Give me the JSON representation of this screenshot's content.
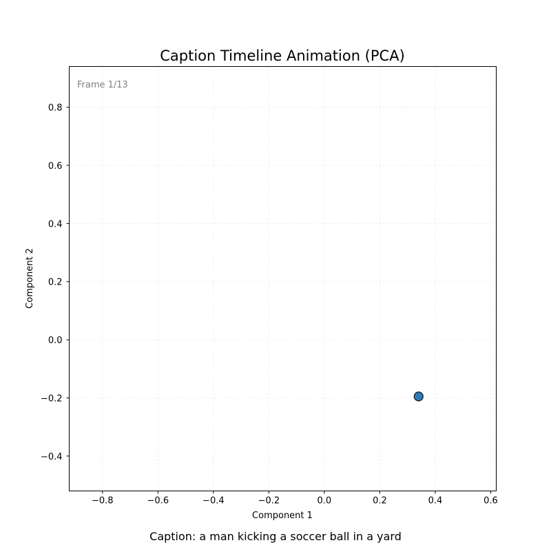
{
  "chart_data": {
    "type": "scatter",
    "title": "Caption Timeline Animation (PCA)",
    "xlabel": "Component 1",
    "ylabel": "Component 2",
    "xlim": [
      -0.92,
      0.62
    ],
    "ylim": [
      -0.52,
      0.94
    ],
    "x_ticks": [
      -0.8,
      -0.6,
      -0.4,
      -0.2,
      0.0,
      0.2,
      0.4,
      0.6
    ],
    "y_ticks": [
      -0.4,
      -0.2,
      0.0,
      0.2,
      0.4,
      0.6,
      0.8
    ],
    "grid": true,
    "frame_label": "Frame 1/13",
    "points": [
      {
        "x": 0.34,
        "y": -0.195
      }
    ],
    "point_color": "#2e7ab6",
    "caption": "Caption: a man kicking a soccer ball in a yard"
  }
}
